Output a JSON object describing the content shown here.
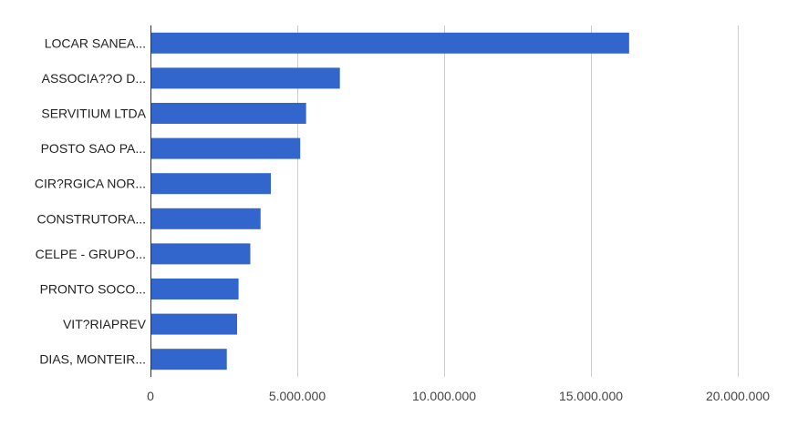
{
  "chart_data": {
    "type": "bar",
    "orientation": "horizontal",
    "categories": [
      "LOCAR SANEA...",
      "ASSOCIA??O D...",
      "SERVITIUM LTDA",
      "POSTO SAO PA...",
      "CIR?RGICA NOR...",
      "CONSTRUTORA...",
      "CELPE - GRUPO...",
      "PRONTO SOCO...",
      "VIT?RIAPREV",
      "DIAS, MONTEIR..."
    ],
    "values": [
      16300000,
      6450000,
      5300000,
      5100000,
      4100000,
      3750000,
      3400000,
      3000000,
      2950000,
      2600000
    ],
    "xlim": [
      0,
      20000000
    ],
    "xticks": [
      0,
      5000000,
      10000000,
      15000000,
      20000000
    ],
    "xtick_labels": [
      "0",
      "5.000.000",
      "10.000.000",
      "15.000.000",
      "20.000.000"
    ],
    "title": "",
    "xlabel": "",
    "ylabel": "",
    "grid": true,
    "legend": "none",
    "bar_color": "#3366cc"
  }
}
